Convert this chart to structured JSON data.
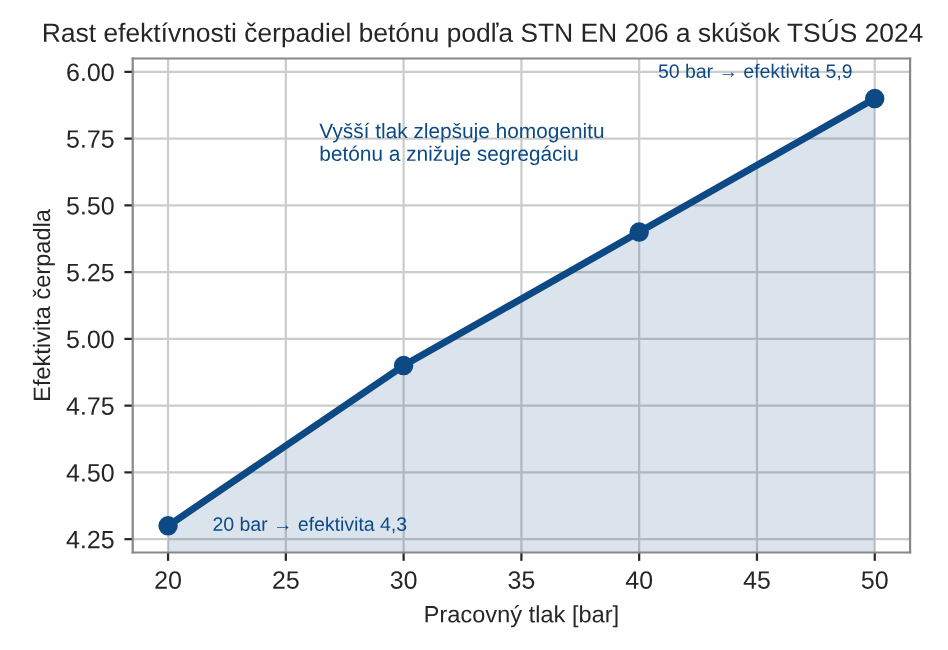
{
  "chart_data": {
    "type": "area",
    "title": "Rast efektívnosti čerpadiel betónu podľa STN EN 206 a skúšok TSÚS 2024",
    "xlabel": "Pracovný tlak [bar]",
    "ylabel": "Efektivita čerpadla",
    "x": [
      20,
      30,
      40,
      50
    ],
    "series": [
      {
        "color": "#0d4a85",
        "values": [
          4.3,
          4.9,
          5.4,
          5.9
        ]
      }
    ],
    "xlim": [
      18.5,
      51.5
    ],
    "xticks": [
      20,
      25,
      30,
      35,
      40,
      45,
      50
    ],
    "ylim": [
      4.2,
      6.05
    ],
    "yticks": [
      {
        "value": 4.25,
        "label": "4.25"
      },
      {
        "value": 4.5,
        "label": "4.50"
      },
      {
        "value": 4.75,
        "label": "4.75"
      },
      {
        "value": 5.0,
        "label": "5.00"
      },
      {
        "value": 5.25,
        "label": "5.25"
      },
      {
        "value": 5.5,
        "label": "5.50"
      },
      {
        "value": 5.75,
        "label": "5.75"
      },
      {
        "value": 6.0,
        "label": "6.00"
      }
    ],
    "grid": true,
    "marker": "circle",
    "line_style": "solid",
    "annotations": [
      {
        "text": "20 bar → efektivita 4,3",
        "x": 20,
        "y": 4.3
      },
      {
        "text": "50 bar → efektivita 5,9",
        "x": 50,
        "y": 5.9
      },
      "Vyšší tlak zlepšuje homogenitu\nbetónu a znižuje segregáciu"
    ]
  }
}
